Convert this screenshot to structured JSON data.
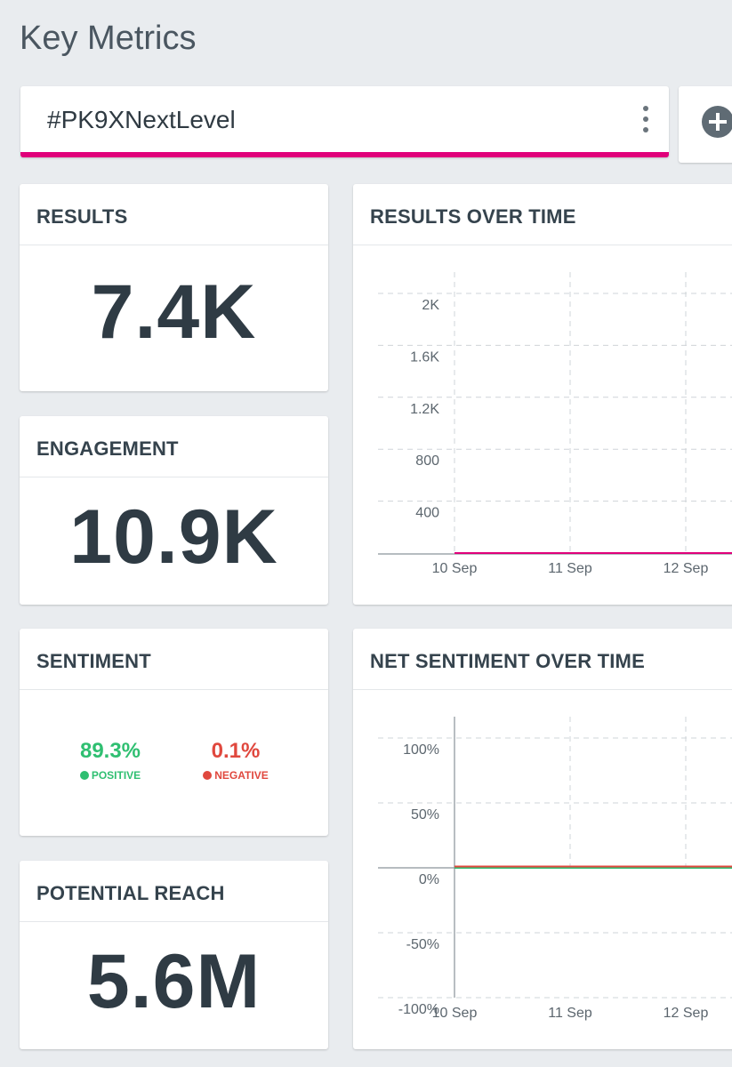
{
  "page": {
    "title": "Key Metrics"
  },
  "query": {
    "label": "#PK9XNextLevel"
  },
  "colors": {
    "accent": "#e0007a",
    "positive": "#2fbf71",
    "negative": "#e0483e"
  },
  "icons": {
    "menu": "kebab-menu-icon",
    "add": "plus-circle-icon"
  },
  "metrics": {
    "results": {
      "title": "RESULTS",
      "value": "7.4K"
    },
    "engagement": {
      "title": "ENGAGEMENT",
      "value": "10.9K"
    },
    "sentiment": {
      "title": "SENTIMENT",
      "positive": {
        "value": "89.3%",
        "label": "POSITIVE"
      },
      "negative": {
        "value": "0.1%",
        "label": "NEGATIVE"
      }
    },
    "reach": {
      "title": "POTENTIAL REACH",
      "value": "5.6M"
    }
  },
  "charts": {
    "results_over_time": {
      "title": "RESULTS OVER TIME"
    },
    "net_sentiment_over_time": {
      "title": "NET SENTIMENT OVER TIME"
    }
  },
  "chart_data": [
    {
      "type": "line",
      "title": "RESULTS OVER TIME",
      "x": [
        "10 Sep",
        "11 Sep",
        "12 Sep"
      ],
      "y_ticks": [
        "2K",
        "1.6K",
        "1.2K",
        "800",
        "400"
      ],
      "ylim": [
        0,
        2000
      ],
      "series": [
        {
          "color": "#e0007a",
          "values": [
            0,
            0,
            0
          ]
        }
      ],
      "grid": true
    },
    {
      "type": "line",
      "title": "NET SENTIMENT OVER TIME",
      "x": [
        "10 Sep",
        "11 Sep",
        "12 Sep"
      ],
      "y_ticks": [
        "100%",
        "50%",
        "0%",
        "-50%",
        "-100%"
      ],
      "ylim": [
        -100,
        100
      ],
      "series": [
        {
          "color": "#2fbf71",
          "values": [
            0,
            0,
            0
          ]
        },
        {
          "color": "#e0483e",
          "values": [
            0,
            0,
            0
          ]
        }
      ],
      "grid": true
    }
  ]
}
